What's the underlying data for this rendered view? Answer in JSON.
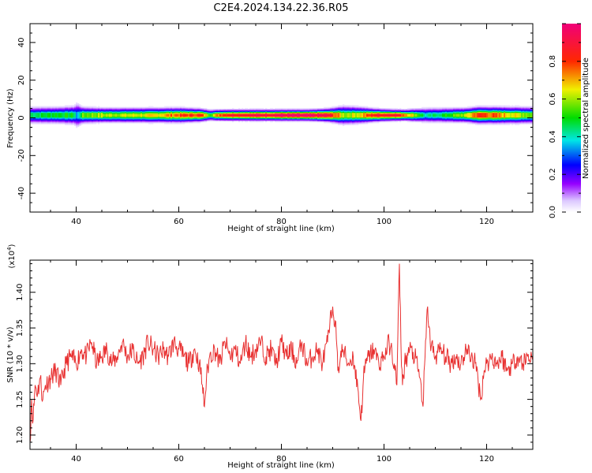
{
  "title": "C2E4.2024.134.22.36.R05",
  "chart_data": [
    {
      "type": "heatmap",
      "xlabel": "Height of straight line (km)",
      "ylabel": "Frequency (Hz)",
      "xlim": [
        31,
        129
      ],
      "ylim": [
        -50,
        50
      ],
      "x_ticks": [
        "40",
        "60",
        "80",
        "100",
        "120"
      ],
      "y_ticks": [
        "40",
        "20",
        "0",
        "-20",
        "-40"
      ],
      "colorbar": {
        "label": "Normalized spectral amplitude",
        "ticks": [
          "0.0",
          "0.2",
          "0.4",
          "0.6",
          "0.8"
        ],
        "range": [
          0,
          1
        ]
      },
      "band_center_hz": 1.5,
      "band_profile": {
        "x": [
          31,
          36,
          39.5,
          40,
          41,
          45,
          50,
          55,
          60,
          64,
          66,
          68,
          70,
          75,
          80,
          85,
          89,
          92,
          95,
          98,
          102,
          104,
          106,
          108,
          112,
          116,
          118,
          120,
          125,
          129
        ],
        "peak": [
          0.45,
          0.5,
          0.48,
          0.3,
          0.55,
          0.6,
          0.62,
          0.65,
          0.78,
          0.82,
          0.55,
          0.8,
          0.88,
          0.9,
          0.95,
          0.93,
          0.9,
          0.6,
          0.65,
          0.85,
          0.9,
          0.75,
          0.6,
          0.4,
          0.5,
          0.62,
          0.8,
          0.78,
          0.65,
          0.55
        ],
        "halfwidth_hz": [
          4.5,
          4.5,
          5,
          7,
          4.5,
          4,
          4,
          4,
          4,
          3.5,
          3,
          3,
          3,
          3,
          3,
          3,
          3.5,
          5,
          4.5,
          3.5,
          3,
          3,
          3.5,
          4,
          4,
          4,
          4.5,
          4.5,
          4.5,
          4.5
        ]
      }
    },
    {
      "type": "line",
      "xlabel": "Height of straight line (km)",
      "ylabel": "SNR (10 * v/v)",
      "multiplier": "(x10",
      "multiplier_exp": "4",
      "xlim": [
        31,
        129
      ],
      "ylim": [
        1.18,
        1.445
      ],
      "x_ticks": [
        "40",
        "60",
        "80",
        "100",
        "120"
      ],
      "y_ticks": [
        "1.20",
        "1.25",
        "1.30",
        "1.35",
        "1.40"
      ],
      "series": [
        {
          "color": "#e83030",
          "x": [
            31.0,
            31.3,
            31.6,
            32.0,
            32.5,
            33.0,
            33.5,
            34.0,
            35.0,
            36.0,
            37.0,
            38.0,
            39.0,
            40.0,
            41.0,
            42.0,
            43.0,
            44.0,
            45.0,
            46.0,
            47.0,
            48.0,
            49.0,
            50.0,
            51.0,
            52.0,
            53.0,
            54.0,
            55.0,
            56.0,
            57.0,
            58.0,
            59.0,
            60.0,
            61.0,
            62.0,
            63.0,
            64.0,
            64.6,
            65.0,
            65.4,
            66.0,
            67.0,
            68.0,
            69.0,
            70.0,
            71.0,
            72.0,
            73.0,
            74.0,
            75.0,
            76.0,
            77.0,
            78.0,
            79.0,
            80.0,
            81.0,
            82.0,
            83.0,
            84.0,
            85.0,
            86.0,
            87.0,
            88.0,
            89.0,
            90.0,
            90.5,
            91.0,
            91.5,
            92.0,
            93.0,
            94.0,
            95.0,
            95.5,
            96.0,
            96.5,
            97.0,
            98.0,
            99.0,
            100.0,
            101.0,
            102.0,
            102.5,
            103.0,
            103.3,
            103.6,
            104.0,
            105.0,
            106.0,
            107.0,
            107.6,
            108.0,
            108.5,
            109.0,
            110.0,
            111.0,
            112.0,
            113.0,
            114.0,
            115.0,
            116.0,
            117.0,
            117.8,
            118.3,
            118.8,
            119.5,
            120.0,
            121.0,
            122.0,
            123.0,
            124.0,
            125.0,
            126.0,
            127.0,
            128.0,
            129.0
          ],
          "y": [
            1.19,
            1.25,
            1.22,
            1.27,
            1.26,
            1.28,
            1.25,
            1.27,
            1.28,
            1.29,
            1.27,
            1.3,
            1.31,
            1.3,
            1.32,
            1.31,
            1.33,
            1.3,
            1.31,
            1.32,
            1.3,
            1.31,
            1.33,
            1.31,
            1.32,
            1.3,
            1.31,
            1.33,
            1.32,
            1.31,
            1.32,
            1.31,
            1.33,
            1.32,
            1.31,
            1.3,
            1.32,
            1.3,
            1.27,
            1.24,
            1.28,
            1.31,
            1.32,
            1.3,
            1.33,
            1.31,
            1.32,
            1.3,
            1.33,
            1.31,
            1.32,
            1.33,
            1.31,
            1.32,
            1.3,
            1.33,
            1.31,
            1.32,
            1.3,
            1.33,
            1.3,
            1.31,
            1.32,
            1.3,
            1.33,
            1.38,
            1.36,
            1.29,
            1.31,
            1.32,
            1.3,
            1.31,
            1.26,
            1.22,
            1.28,
            1.3,
            1.31,
            1.32,
            1.3,
            1.31,
            1.33,
            1.3,
            1.27,
            1.44,
            1.33,
            1.27,
            1.3,
            1.32,
            1.31,
            1.28,
            1.24,
            1.31,
            1.38,
            1.33,
            1.31,
            1.32,
            1.31,
            1.3,
            1.31,
            1.3,
            1.32,
            1.31,
            1.3,
            1.28,
            1.25,
            1.29,
            1.3,
            1.31,
            1.3,
            1.31,
            1.29,
            1.3,
            1.31,
            1.3,
            1.31,
            1.31
          ]
        }
      ]
    }
  ]
}
